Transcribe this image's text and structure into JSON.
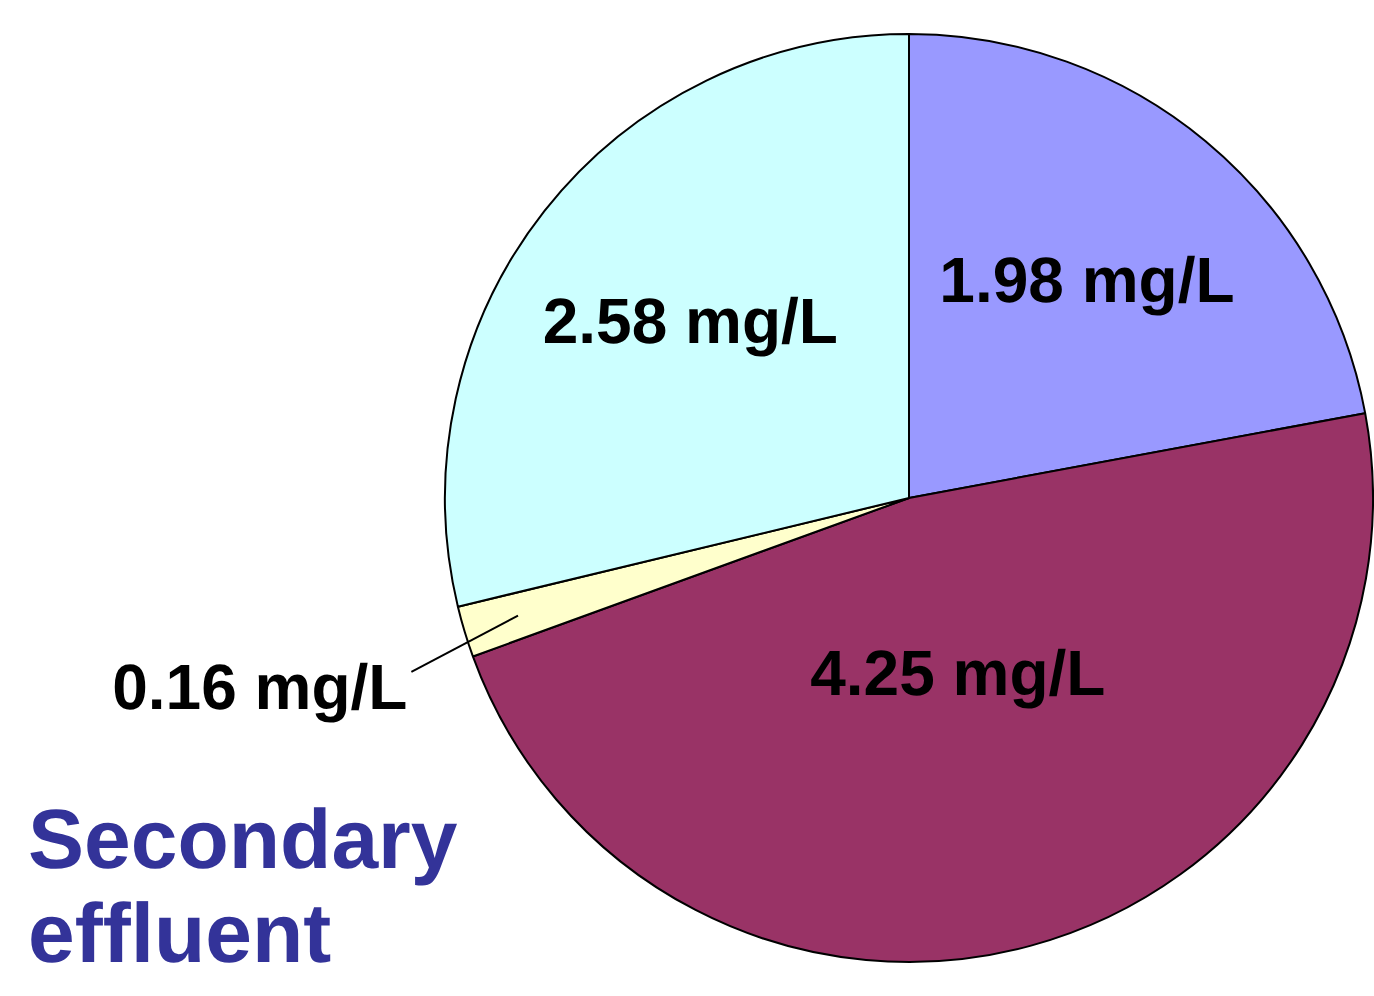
{
  "chart_data": {
    "type": "pie",
    "title": "Secondary effluent",
    "categories": [
      null,
      null,
      null,
      null
    ],
    "values": [
      1.98,
      4.25,
      0.16,
      2.58
    ],
    "colors": [
      "#9999ff",
      "#993366",
      "#ffffcc",
      "#ccffff"
    ],
    "value_labels": [
      "1.98 mg/L",
      "4.25 mg/L",
      "0.16 mg/L",
      "2.58 mg/L"
    ]
  }
}
